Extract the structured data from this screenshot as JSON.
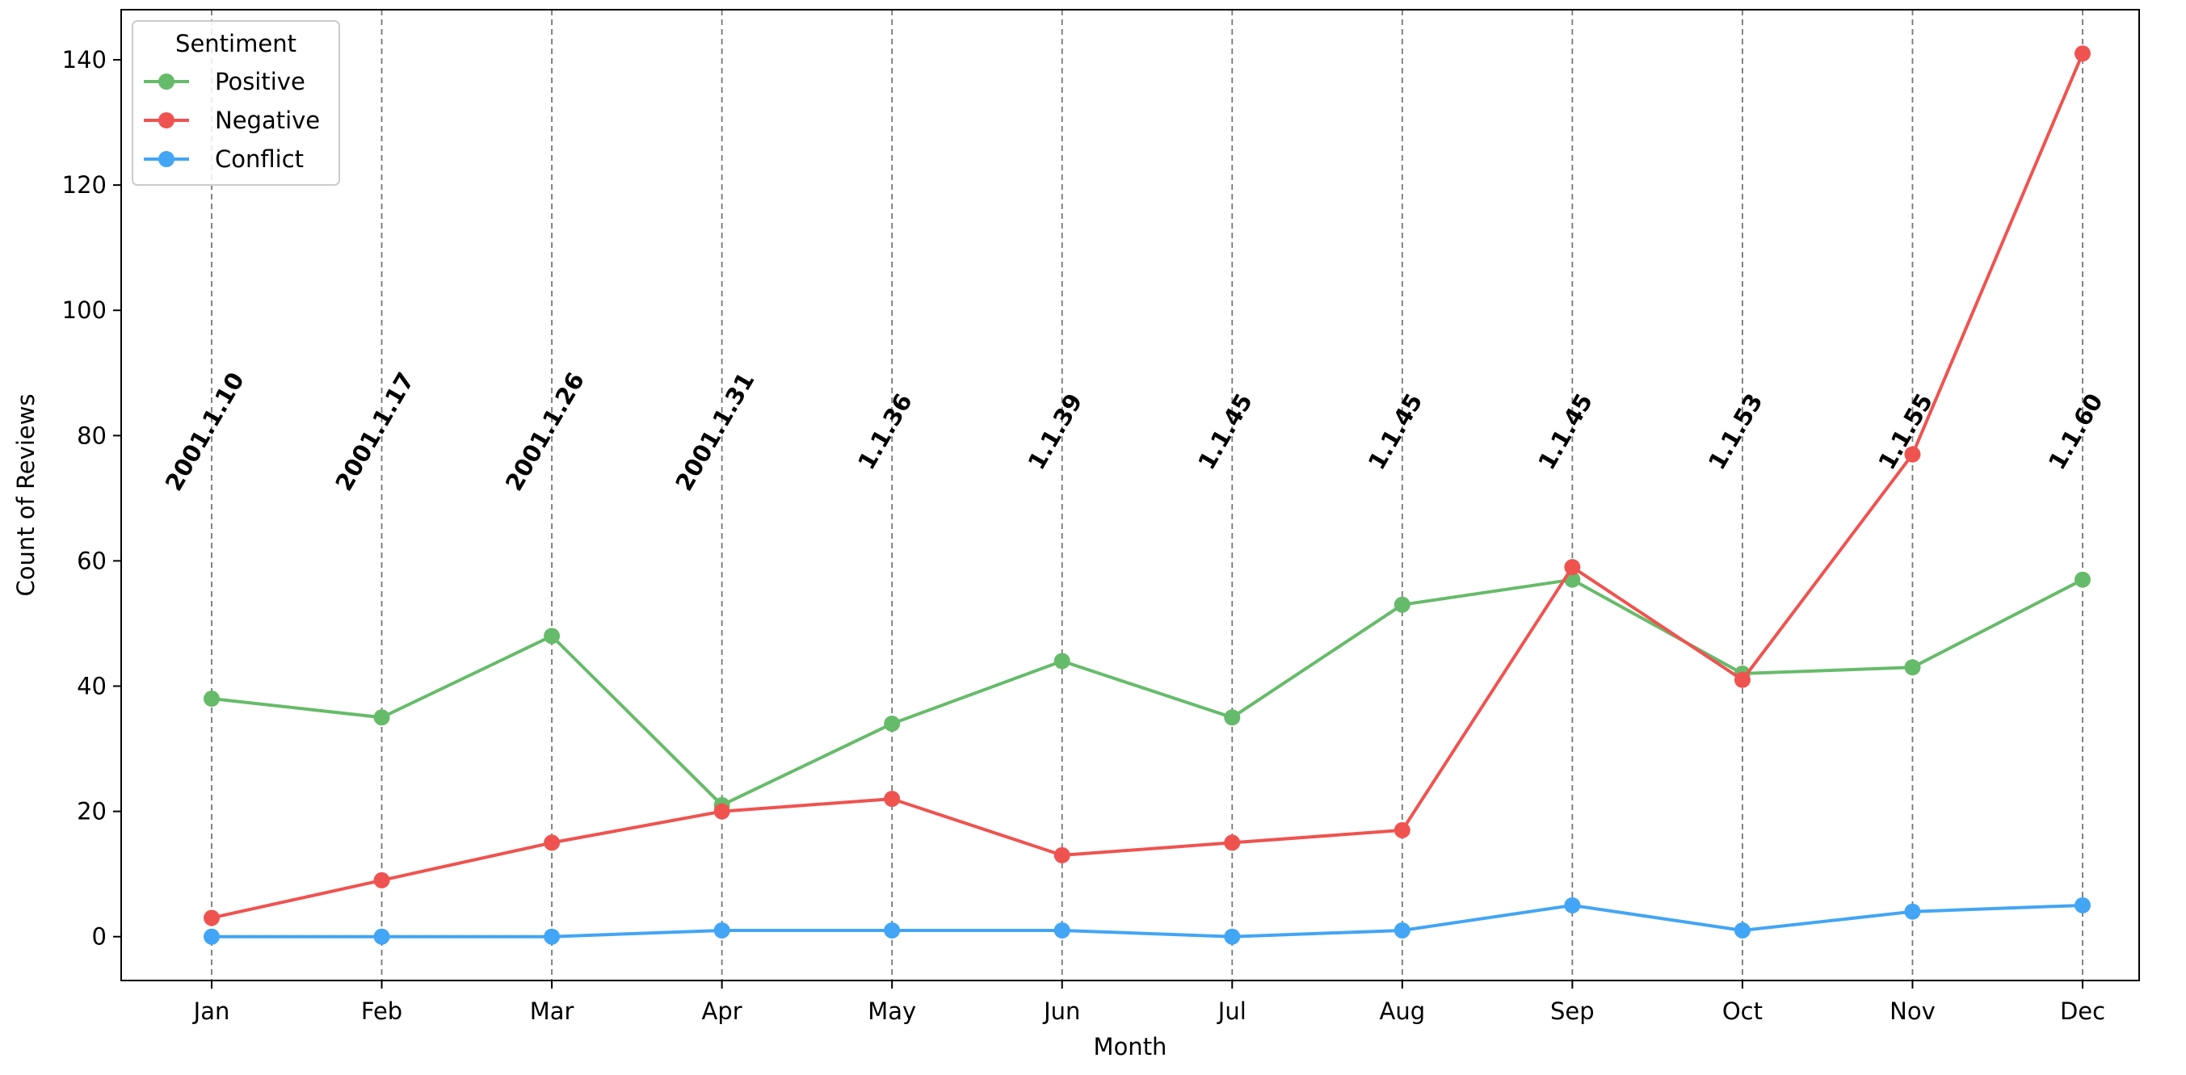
{
  "chart_data": {
    "type": "line",
    "xlabel": "Month",
    "ylabel": "Count of Reviews",
    "categories": [
      "Jan",
      "Feb",
      "Mar",
      "Apr",
      "May",
      "Jun",
      "Jul",
      "Aug",
      "Sep",
      "Oct",
      "Nov",
      "Dec"
    ],
    "ylim": [
      -7,
      148
    ],
    "yticks": [
      0,
      20,
      40,
      60,
      80,
      100,
      120,
      140
    ],
    "grid": "vertical dashed lines at each month",
    "legend": {
      "title": "Sentiment",
      "placement": "top-left"
    },
    "series": [
      {
        "name": "Positive",
        "color": "#66bb6a",
        "values": [
          38,
          35,
          48,
          21,
          34,
          44,
          35,
          53,
          57,
          42,
          43,
          57
        ]
      },
      {
        "name": "Negative",
        "color": "#ef5350",
        "values": [
          3,
          9,
          15,
          20,
          22,
          13,
          15,
          17,
          59,
          41,
          77,
          141
        ]
      },
      {
        "name": "Conflict",
        "color": "#42a5f5",
        "values": [
          0,
          0,
          0,
          1,
          1,
          1,
          0,
          1,
          5,
          1,
          4,
          5
        ]
      }
    ],
    "annotations": [
      "2001.1.10",
      "2001.1.17",
      "2001.1.26",
      "2001.1.31",
      "1.1.36",
      "1.1.39",
      "1.1.45",
      "1.1.45",
      "1.1.45",
      "1.1.53",
      "1.1.55",
      "1.1.60"
    ],
    "annotation_y": 80
  }
}
